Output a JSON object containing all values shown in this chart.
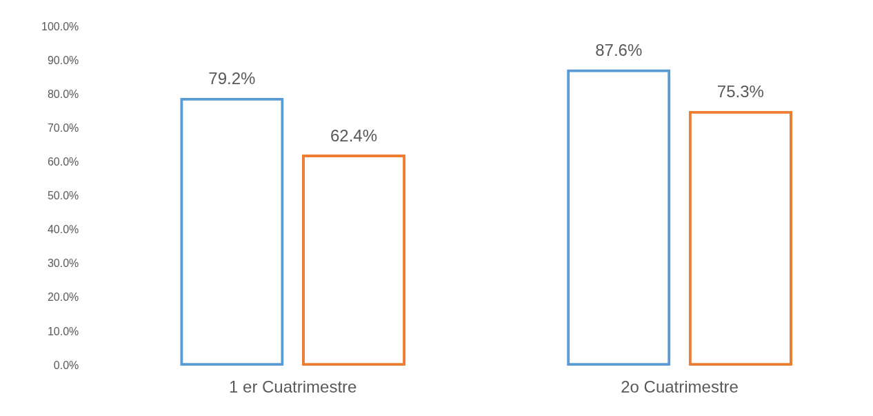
{
  "chart_data": {
    "type": "bar",
    "categories": [
      "1 er Cuatrimestre",
      "2o Cuatrimestre"
    ],
    "series": [
      {
        "color": "#5b9bd5",
        "values": [
          79.2,
          87.6
        ],
        "value_labels": [
          "79.2%",
          "87.6%"
        ]
      },
      {
        "color": "#ed7d31",
        "values": [
          62.4,
          75.3
        ],
        "value_labels": [
          "62.4%",
          "75.3%"
        ]
      }
    ],
    "ylim": [
      0,
      100
    ],
    "yticks": [
      {
        "value": 0,
        "label": "0.0%"
      },
      {
        "value": 10,
        "label": "10.0%"
      },
      {
        "value": 20,
        "label": "20.0%"
      },
      {
        "value": 30,
        "label": "30.0%"
      },
      {
        "value": 40,
        "label": "40.0%"
      },
      {
        "value": 50,
        "label": "50.0%"
      },
      {
        "value": 60,
        "label": "60.0%"
      },
      {
        "value": 70,
        "label": "70.0%"
      },
      {
        "value": 80,
        "label": "80.0%"
      },
      {
        "value": 90,
        "label": "90.0%"
      },
      {
        "value": 100,
        "label": "100.0%"
      }
    ],
    "grid": false,
    "legend": false
  }
}
